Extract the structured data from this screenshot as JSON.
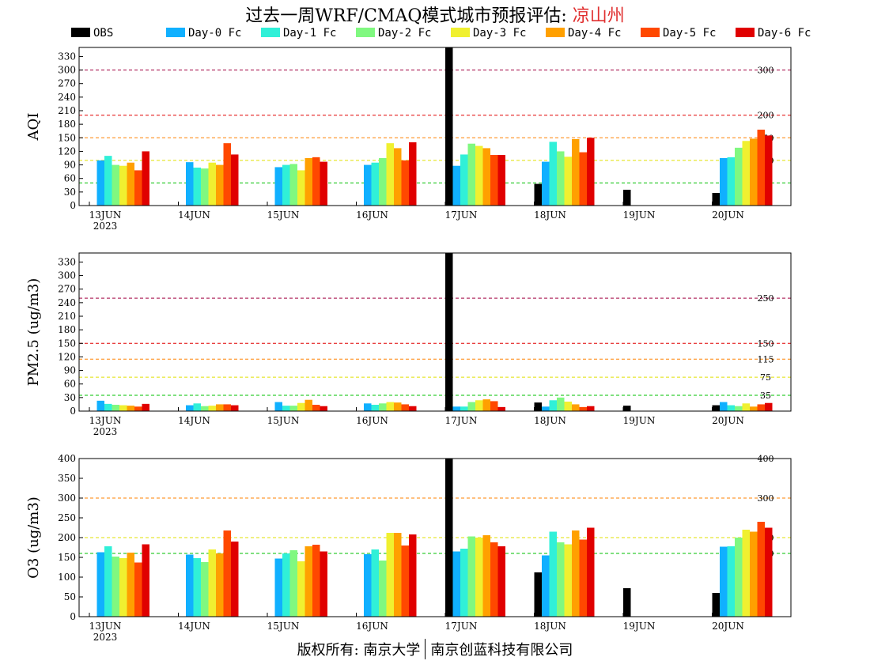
{
  "header": {
    "title_prefix": "过去一周WRF/CMAQ模式城市预报评估: ",
    "city": "凉山州"
  },
  "footer": {
    "left": "版权所有: 南京大学",
    "right": "南京创蓝科技有限公司"
  },
  "colors": {
    "OBS": "#000000",
    "Day-0 Fc": "#10b0ff",
    "Day-1 Fc": "#30f0d8",
    "Day-2 Fc": "#80f880",
    "Day-3 Fc": "#f0f030",
    "Day-4 Fc": "#ffa000",
    "Day-5 Fc": "#ff4800",
    "Day-6 Fc": "#e00000"
  },
  "chart_data": [
    {
      "type": "bar",
      "ylabel": "AQI",
      "ylim": [
        0,
        350
      ],
      "yticks": [
        0,
        30,
        60,
        90,
        120,
        150,
        180,
        210,
        240,
        270,
        300,
        330
      ],
      "categories": [
        "13JUN",
        "14JUN",
        "15JUN",
        "16JUN",
        "17JUN",
        "18JUN",
        "19JUN",
        "20JUN"
      ],
      "year_label": "2023",
      "thresholds": [
        {
          "value": 50,
          "label": "50",
          "color": "#00c000"
        },
        {
          "value": 100,
          "label": "100",
          "color": "#e0e000"
        },
        {
          "value": 150,
          "label": "150",
          "color": "#ff8000"
        },
        {
          "value": 200,
          "label": "200",
          "color": "#e00000"
        },
        {
          "value": 300,
          "label": "300",
          "color": "#a00040"
        }
      ],
      "series": [
        {
          "name": "OBS",
          "values": [
            null,
            null,
            null,
            null,
            350,
            48,
            35,
            28
          ]
        },
        {
          "name": "Day-0 Fc",
          "values": [
            100,
            96,
            85,
            90,
            88,
            97,
            null,
            105
          ]
        },
        {
          "name": "Day-1 Fc",
          "values": [
            110,
            84,
            90,
            95,
            113,
            141,
            null,
            107
          ]
        },
        {
          "name": "Day-2 Fc",
          "values": [
            90,
            82,
            92,
            105,
            137,
            120,
            null,
            128
          ]
        },
        {
          "name": "Day-3 Fc",
          "values": [
            88,
            95,
            78,
            138,
            132,
            108,
            null,
            143
          ]
        },
        {
          "name": "Day-4 Fc",
          "values": [
            95,
            90,
            105,
            127,
            127,
            147,
            null,
            148
          ]
        },
        {
          "name": "Day-5 Fc",
          "values": [
            78,
            138,
            107,
            100,
            112,
            118,
            null,
            168
          ]
        },
        {
          "name": "Day-6 Fc",
          "values": [
            120,
            113,
            97,
            140,
            112,
            150,
            null,
            155
          ]
        }
      ]
    },
    {
      "type": "bar",
      "ylabel": "PM2.5 (ug/m3)",
      "ylim": [
        0,
        350
      ],
      "yticks": [
        0,
        30,
        60,
        90,
        120,
        150,
        180,
        210,
        240,
        270,
        300,
        330
      ],
      "categories": [
        "13JUN",
        "14JUN",
        "15JUN",
        "16JUN",
        "17JUN",
        "18JUN",
        "19JUN",
        "20JUN"
      ],
      "year_label": "2023",
      "thresholds": [
        {
          "value": 35,
          "label": "35",
          "color": "#00c000"
        },
        {
          "value": 75,
          "label": "75",
          "color": "#e0e000"
        },
        {
          "value": 115,
          "label": "115",
          "color": "#ff8000"
        },
        {
          "value": 150,
          "label": "150",
          "color": "#e00000"
        },
        {
          "value": 250,
          "label": "250",
          "color": "#a00040"
        }
      ],
      "series": [
        {
          "name": "OBS",
          "values": [
            null,
            null,
            null,
            null,
            350,
            19,
            12,
            13
          ]
        },
        {
          "name": "Day-0 Fc",
          "values": [
            23,
            13,
            20,
            17,
            10,
            10,
            null,
            20
          ]
        },
        {
          "name": "Day-1 Fc",
          "values": [
            16,
            17,
            12,
            14,
            10,
            24,
            null,
            13
          ]
        },
        {
          "name": "Day-2 Fc",
          "values": [
            14,
            11,
            12,
            17,
            20,
            30,
            null,
            11
          ]
        },
        {
          "name": "Day-3 Fc",
          "values": [
            13,
            12,
            18,
            20,
            24,
            21,
            null,
            17
          ]
        },
        {
          "name": "Day-4 Fc",
          "values": [
            12,
            15,
            25,
            19,
            26,
            15,
            null,
            10
          ]
        },
        {
          "name": "Day-5 Fc",
          "values": [
            10,
            15,
            14,
            15,
            22,
            9,
            null,
            15
          ]
        },
        {
          "name": "Day-6 Fc",
          "values": [
            16,
            13,
            11,
            11,
            9,
            11,
            null,
            18
          ]
        }
      ]
    },
    {
      "type": "bar",
      "ylabel": "O3 (ug/m3)",
      "ylim": [
        0,
        400
      ],
      "yticks": [
        0,
        50,
        100,
        150,
        200,
        250,
        300,
        350,
        400
      ],
      "categories": [
        "13JUN",
        "14JUN",
        "15JUN",
        "16JUN",
        "17JUN",
        "18JUN",
        "19JUN",
        "20JUN"
      ],
      "year_label": "2023",
      "thresholds": [
        {
          "value": 160,
          "label": "160",
          "color": "#00c000"
        },
        {
          "value": 200,
          "label": "200",
          "color": "#e0e000"
        },
        {
          "value": 300,
          "label": "300",
          "color": "#ff8000"
        },
        {
          "value": 400,
          "label": "400",
          "color": "#e00000"
        }
      ],
      "series": [
        {
          "name": "OBS",
          "values": [
            null,
            null,
            null,
            null,
            400,
            112,
            72,
            60
          ]
        },
        {
          "name": "Day-0 Fc",
          "values": [
            163,
            157,
            147,
            158,
            165,
            155,
            null,
            177
          ]
        },
        {
          "name": "Day-1 Fc",
          "values": [
            178,
            148,
            160,
            170,
            172,
            215,
            null,
            178
          ]
        },
        {
          "name": "Day-2 Fc",
          "values": [
            152,
            138,
            168,
            142,
            203,
            188,
            null,
            200
          ]
        },
        {
          "name": "Day-3 Fc",
          "values": [
            148,
            170,
            140,
            212,
            200,
            183,
            null,
            220
          ]
        },
        {
          "name": "Day-4 Fc",
          "values": [
            162,
            160,
            178,
            212,
            206,
            218,
            null,
            215
          ]
        },
        {
          "name": "Day-5 Fc",
          "values": [
            137,
            218,
            182,
            180,
            188,
            195,
            null,
            240
          ]
        },
        {
          "name": "Day-6 Fc",
          "values": [
            183,
            190,
            165,
            208,
            178,
            225,
            null,
            225
          ]
        }
      ]
    }
  ]
}
